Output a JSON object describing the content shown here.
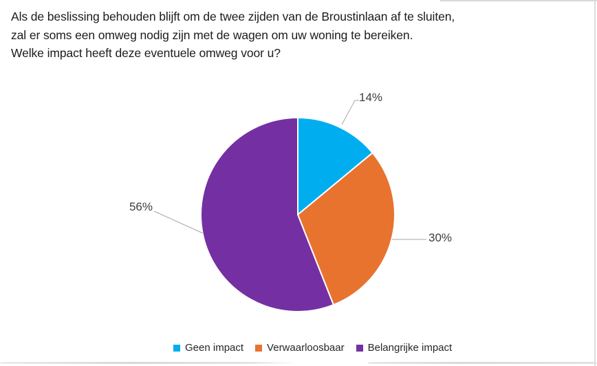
{
  "title": {
    "lines": [
      "Als de beslissing behouden blijft om de twee zijden van de Broustinlaan af te sluiten,",
      "zal er soms een omweg nodig zijn met de wagen om uw woning te bereiken.",
      "Welke impact heeft deze eventuele omweg voor u?"
    ]
  },
  "chart_data": {
    "type": "pie",
    "title": "Welke impact heeft deze eventuele omweg voor u?",
    "labels": [
      "Geen impact",
      "Verwaarloosbaar",
      "Belangrijke impact"
    ],
    "values": [
      14,
      30,
      56
    ],
    "unit": "%",
    "point_labels": [
      "14%",
      "30%",
      "56%"
    ],
    "colors": [
      "#00AEEF",
      "#E8732F",
      "#7430A3"
    ],
    "start_angle_deg": 0,
    "direction": "clockwise",
    "legend_position": "bottom",
    "leader_line_color": "#A6A6A6"
  }
}
